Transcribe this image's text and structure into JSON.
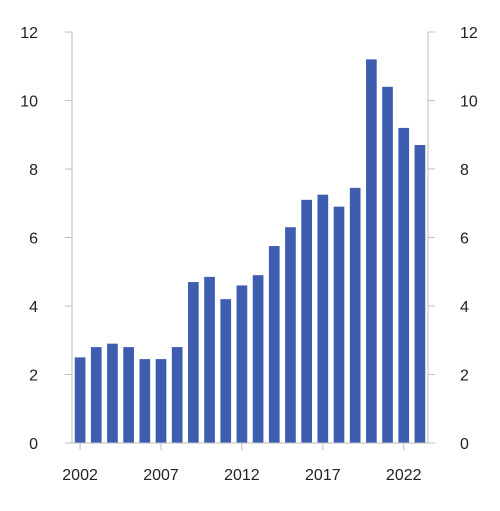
{
  "chart_data": {
    "type": "bar",
    "title": "",
    "xlabel": "",
    "ylabel": "",
    "x": [
      2002,
      2003,
      2004,
      2005,
      2006,
      2007,
      2008,
      2009,
      2010,
      2011,
      2012,
      2013,
      2014,
      2015,
      2016,
      2017,
      2018,
      2019,
      2020,
      2021,
      2022,
      2023
    ],
    "values": [
      2.5,
      2.8,
      2.9,
      2.8,
      2.45,
      2.45,
      2.8,
      4.7,
      4.85,
      4.2,
      4.6,
      4.9,
      5.75,
      6.3,
      7.1,
      7.25,
      6.9,
      7.45,
      11.2,
      10.4,
      9.2,
      8.7
    ],
    "x_tick_labels": [
      "2002",
      "2007",
      "2012",
      "2017",
      "2022"
    ],
    "y_tick_labels": [
      "0",
      "2",
      "4",
      "6",
      "8",
      "10",
      "12"
    ],
    "ylim": [
      0,
      12
    ],
    "y_axis_sides": "left and right",
    "grid": false,
    "bar_color": "#3f5db0",
    "axis_color": "#bdbdbd"
  }
}
